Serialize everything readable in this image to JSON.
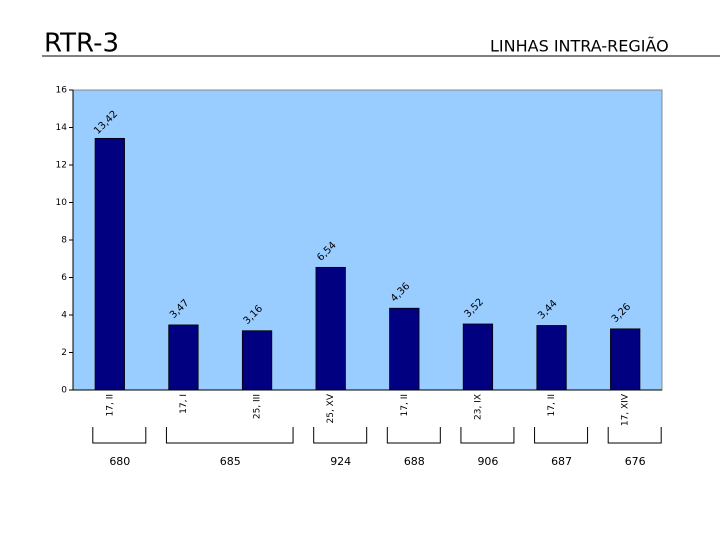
{
  "header": {
    "title": "RTR-3",
    "subtitle": "LINHAS INTRA-REGIÃO"
  },
  "chart_data": {
    "type": "bar",
    "categories": [
      "17, II",
      "17, I",
      "25, III",
      "25, XV",
      "17, II",
      "23, IX",
      "17, II",
      "17, XIV"
    ],
    "values": [
      13.42,
      3.47,
      3.16,
      6.54,
      4.36,
      3.52,
      3.44,
      3.26
    ],
    "value_labels": [
      "13,42",
      "3,47",
      "3,16",
      "6,54",
      "4,36",
      "3,52",
      "3,44",
      "3,26"
    ],
    "color": "#000080",
    "ylim": [
      0,
      16
    ],
    "yticks": [
      0,
      2,
      4,
      6,
      8,
      10,
      12,
      14,
      16
    ],
    "grid": false,
    "group_labels": [
      "680",
      "685",
      "924",
      "688",
      "906",
      "687",
      "676"
    ]
  }
}
